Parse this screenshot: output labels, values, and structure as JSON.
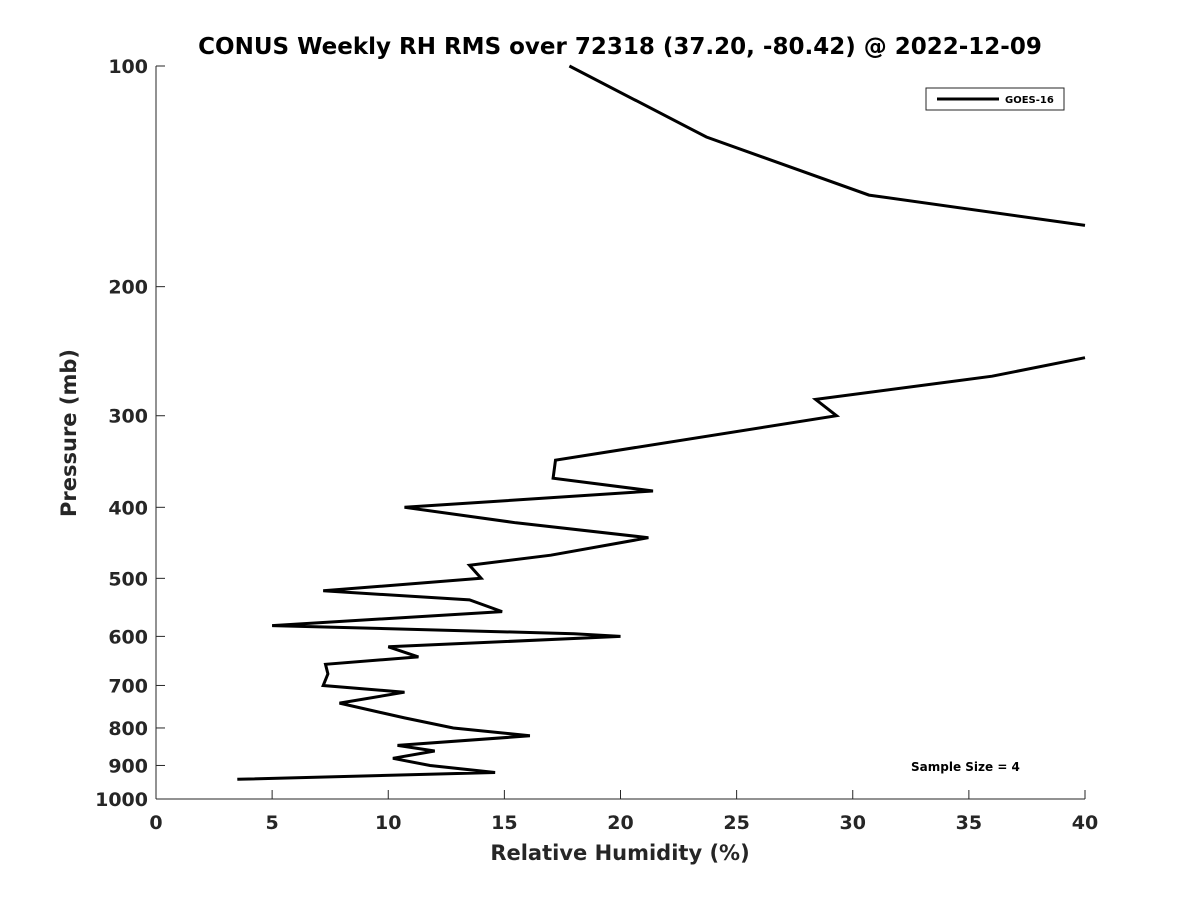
{
  "chart_data": {
    "type": "line",
    "title": "CONUS Weekly RH RMS over 72318 (37.20, -80.42) @ 2022-12-09",
    "xlabel": "Relative Humidity (%)",
    "ylabel": "Pressure (mb)",
    "xlim": [
      0,
      40
    ],
    "ylim": [
      100,
      1000
    ],
    "y_scale": "log",
    "y_reversed": true,
    "x_ticks": [
      0,
      5,
      10,
      15,
      20,
      25,
      30,
      35,
      40
    ],
    "y_ticks": [
      100,
      200,
      300,
      400,
      500,
      600,
      700,
      800,
      900,
      1000
    ],
    "grid": false,
    "legend_position": "top-right",
    "annotation": "Sample Size = 4",
    "series": [
      {
        "name": "GOES-16",
        "color": "#000000",
        "segments": [
          {
            "x": [
              17.8,
              23.7,
              30.7,
              40.0
            ],
            "y": [
              100,
              125,
              150,
              165
            ]
          },
          {
            "x": [
              40.0,
              36.0,
              28.4,
              29.3,
              17.2,
              17.1,
              21.4,
              10.7,
              15.5,
              21.2,
              17.0,
              13.5,
              14.0,
              7.2,
              13.5,
              14.9,
              5.0,
              18.0,
              20.0,
              10.0,
              11.3,
              7.3,
              7.4,
              7.2,
              10.7,
              7.9,
              10.7,
              12.8,
              16.1,
              10.4,
              12.0,
              10.2,
              11.8,
              14.6,
              3.5
            ],
            "y": [
              250,
              265,
              285,
              300,
              345,
              365,
              380,
              400,
              420,
              440,
              465,
              480,
              500,
              520,
              535,
              555,
              580,
              595,
              600,
              620,
              640,
              655,
              675,
              700,
              715,
              740,
              775,
              800,
              820,
              845,
              860,
              880,
              900,
              920,
              940
            ]
          }
        ]
      }
    ]
  }
}
